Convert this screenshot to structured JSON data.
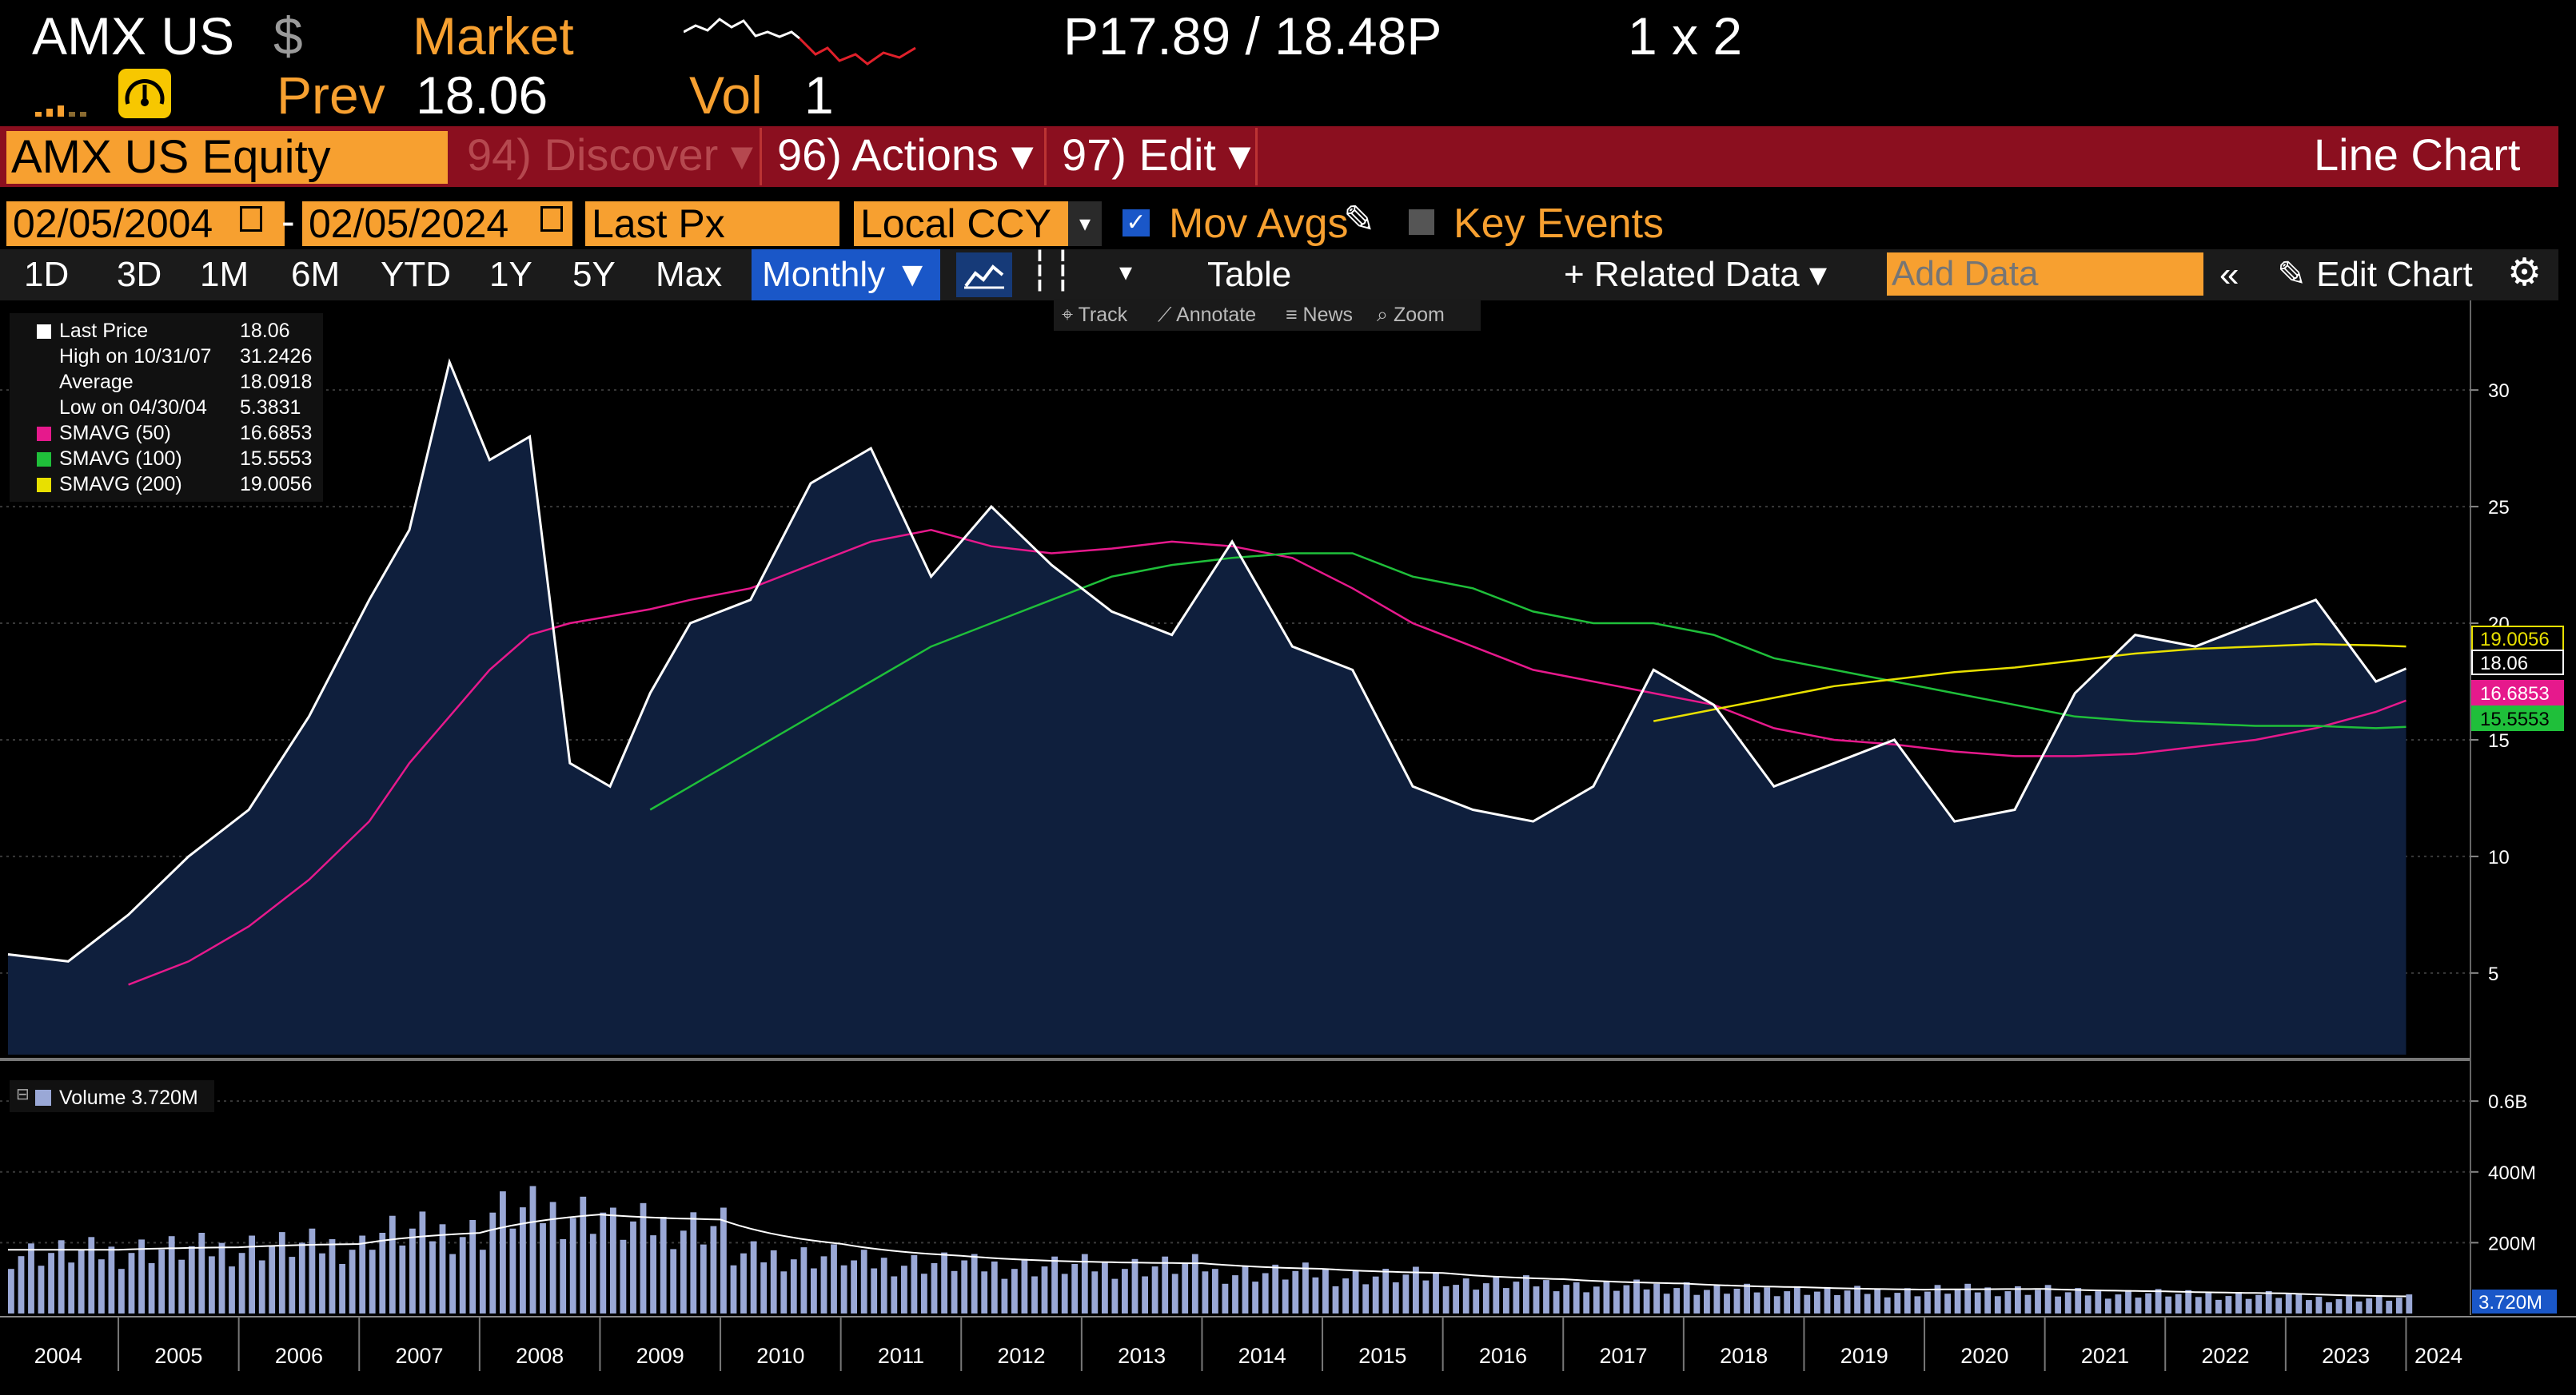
{
  "header": {
    "ticker": "AMX US",
    "currency": "$",
    "market_label": "Market",
    "bid_ask": "P17.89 / 18.48P",
    "size": "1 x 2",
    "prev_label": "Prev",
    "prev_value": "18.06",
    "vol_label": "Vol",
    "vol_value": "1"
  },
  "toolbar": {
    "security": "AMX US Equity",
    "discover": "94) Discover",
    "actions": "96) Actions",
    "edit": "97) Edit",
    "chart_type": "Line Chart"
  },
  "controls": {
    "start_date": "02/05/2004",
    "end_date": "02/05/2024",
    "dash": "-",
    "field": "Last Px",
    "currency": "Local CCY",
    "mov_avgs": "Mov Avgs",
    "key_events": "Key Events"
  },
  "timeframes": [
    "1D",
    "3D",
    "1M",
    "6M",
    "YTD",
    "1Y",
    "5Y",
    "Max"
  ],
  "period": "Monthly",
  "table_label": "Table",
  "related_data": "Related Data",
  "add_data_placeholder": "Add Data",
  "edit_chart": "Edit Chart",
  "mini_tools": [
    "Track",
    "Annotate",
    "News",
    "Zoom"
  ],
  "legend": [
    {
      "label": "Last Price",
      "value": "18.06",
      "color": "#ffffff"
    },
    {
      "label": "High on 10/31/07",
      "value": "31.2426",
      "color": "#ffffff"
    },
    {
      "label": "Average",
      "value": "18.0918",
      "color": "#ffffff"
    },
    {
      "label": "Low on 04/30/04",
      "value": "5.3831",
      "color": "#ffffff"
    },
    {
      "label": "SMAVG (50)",
      "value": "16.6853",
      "color": "#e6198c"
    },
    {
      "label": "SMAVG (100)",
      "value": "15.5553",
      "color": "#1fbf3a"
    },
    {
      "label": "SMAVG (200)",
      "value": "19.0056",
      "color": "#e8e000"
    }
  ],
  "volume_legend": "Volume 3.720M",
  "chart_data": {
    "type": "line",
    "x": [
      "2004-02",
      "2004-08",
      "2005-02",
      "2005-08",
      "2006-02",
      "2006-08",
      "2007-02",
      "2007-06",
      "2007-10",
      "2008-02",
      "2008-06",
      "2008-10",
      "2009-02",
      "2009-06",
      "2009-10",
      "2010-04",
      "2010-10",
      "2011-04",
      "2011-10",
      "2012-04",
      "2012-10",
      "2013-04",
      "2013-10",
      "2014-04",
      "2014-10",
      "2015-04",
      "2015-10",
      "2016-04",
      "2016-10",
      "2017-04",
      "2017-10",
      "2018-04",
      "2018-10",
      "2019-04",
      "2019-10",
      "2020-04",
      "2020-10",
      "2021-04",
      "2021-10",
      "2022-04",
      "2022-10",
      "2023-04",
      "2023-10",
      "2024-01"
    ],
    "series": [
      {
        "name": "Last Price",
        "color": "#ffffff",
        "values": [
          5.8,
          5.5,
          7.5,
          10,
          12,
          16,
          21,
          24,
          31.2,
          27,
          28,
          14,
          13,
          17,
          20,
          21,
          26,
          27.5,
          22,
          25,
          22.5,
          20.5,
          19.5,
          23.5,
          19,
          18,
          13,
          12,
          11.5,
          13,
          18,
          16.5,
          13,
          14,
          15,
          11.5,
          12,
          17,
          19.5,
          19,
          20,
          21,
          17.5,
          18.06
        ]
      },
      {
        "name": "SMAVG (50)",
        "color": "#e6198c",
        "values": [
          null,
          null,
          4.5,
          5.5,
          7,
          9,
          11.5,
          14,
          16,
          18,
          19.5,
          20,
          20.3,
          20.6,
          21,
          21.5,
          22.5,
          23.5,
          24,
          23.3,
          23,
          23.2,
          23.5,
          23.3,
          22.8,
          21.5,
          20,
          19,
          18,
          17.5,
          17,
          16.5,
          15.5,
          15,
          14.8,
          14.5,
          14.3,
          14.3,
          14.4,
          14.7,
          15,
          15.5,
          16.2,
          16.6853
        ]
      },
      {
        "name": "SMAVG (100)",
        "color": "#1fbf3a",
        "values": [
          null,
          null,
          null,
          null,
          null,
          null,
          null,
          null,
          null,
          null,
          null,
          null,
          null,
          12,
          13,
          14.5,
          16,
          17.5,
          19,
          20,
          21,
          22,
          22.5,
          22.8,
          23,
          23,
          22,
          21.5,
          20.5,
          20,
          20,
          19.5,
          18.5,
          18,
          17.5,
          17,
          16.5,
          16,
          15.8,
          15.7,
          15.6,
          15.6,
          15.5,
          15.5553
        ]
      },
      {
        "name": "SMAVG (200)",
        "color": "#e8e000",
        "values": [
          null,
          null,
          null,
          null,
          null,
          null,
          null,
          null,
          null,
          null,
          null,
          null,
          null,
          null,
          null,
          null,
          null,
          null,
          null,
          null,
          null,
          null,
          null,
          null,
          null,
          null,
          null,
          null,
          null,
          null,
          15.8,
          16.3,
          16.8,
          17.3,
          17.6,
          17.9,
          18.1,
          18.4,
          18.7,
          18.9,
          19,
          19.1,
          19.05,
          19.0056
        ]
      }
    ],
    "volume": {
      "name": "Volume",
      "years": [
        2004,
        2005,
        2006,
        2007,
        2008,
        2009,
        2010,
        2011,
        2012,
        2013,
        2014,
        2015,
        2016,
        2017,
        2018,
        2019,
        2020,
        2021,
        2022,
        2023
      ],
      "values_millions": [
        180,
        190,
        200,
        240,
        300,
        260,
        170,
        150,
        140,
        140,
        120,
        110,
        90,
        80,
        70,
        65,
        70,
        60,
        55,
        45
      ],
      "last": "3.720M"
    },
    "y_axis": {
      "ticks": [
        "5",
        "10",
        "15",
        "20",
        "25",
        "30"
      ],
      "range": [
        1.5,
        33.5
      ]
    },
    "volume_axis": {
      "ticks": [
        "200M",
        "400M",
        "0.6B"
      ]
    },
    "x_axis_years": [
      "2004",
      "2005",
      "2006",
      "2007",
      "2008",
      "2009",
      "2010",
      "2011",
      "2012",
      "2013",
      "2014",
      "2015",
      "2016",
      "2017",
      "2018",
      "2019",
      "2020",
      "2021",
      "2022",
      "2023",
      "2024"
    ],
    "right_labels": [
      "19.0056",
      "18.06",
      "16.6853",
      "15.5553"
    ]
  }
}
